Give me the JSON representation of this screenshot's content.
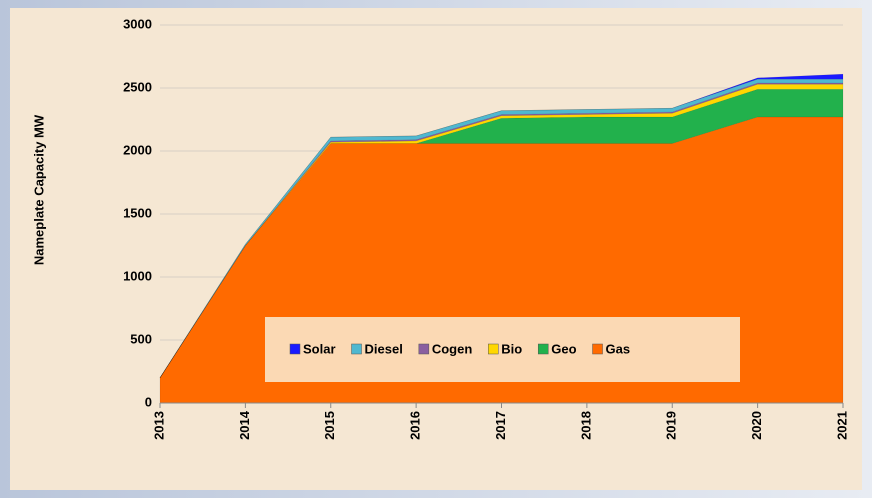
{
  "chart_data": {
    "type": "stacked_area",
    "y_label": "Nameplate Capacity MW",
    "categories": [
      "2013",
      "2014",
      "2015",
      "2016",
      "2017",
      "2018",
      "2019",
      "2020",
      "2021"
    ],
    "series": [
      {
        "name": "Gas",
        "color": "#ff6a00",
        "values": [
          200,
          1250,
          2060,
          2060,
          2060,
          2060,
          2060,
          2270,
          2270
        ]
      },
      {
        "name": "Geo",
        "color": "#22b14c",
        "values": [
          0,
          0,
          0,
          0,
          200,
          210,
          210,
          220,
          220
        ]
      },
      {
        "name": "Bio",
        "color": "#ffd700",
        "values": [
          0,
          0,
          10,
          20,
          20,
          20,
          30,
          40,
          40
        ]
      },
      {
        "name": "Cogen",
        "color": "#8a5fa0",
        "values": [
          0,
          0,
          10,
          10,
          10,
          10,
          10,
          10,
          10
        ]
      },
      {
        "name": "Diesel",
        "color": "#4fb8d0",
        "values": [
          0,
          10,
          30,
          30,
          30,
          30,
          30,
          30,
          30
        ]
      },
      {
        "name": "Solar",
        "color": "#1a1aff",
        "values": [
          0,
          0,
          0,
          0,
          0,
          0,
          0,
          10,
          40
        ]
      }
    ],
    "ylim": [
      0,
      3000
    ],
    "yticks": [
      0,
      500,
      1000,
      1500,
      2000,
      2500,
      3000
    ],
    "grid": true,
    "legend": "bottom"
  }
}
